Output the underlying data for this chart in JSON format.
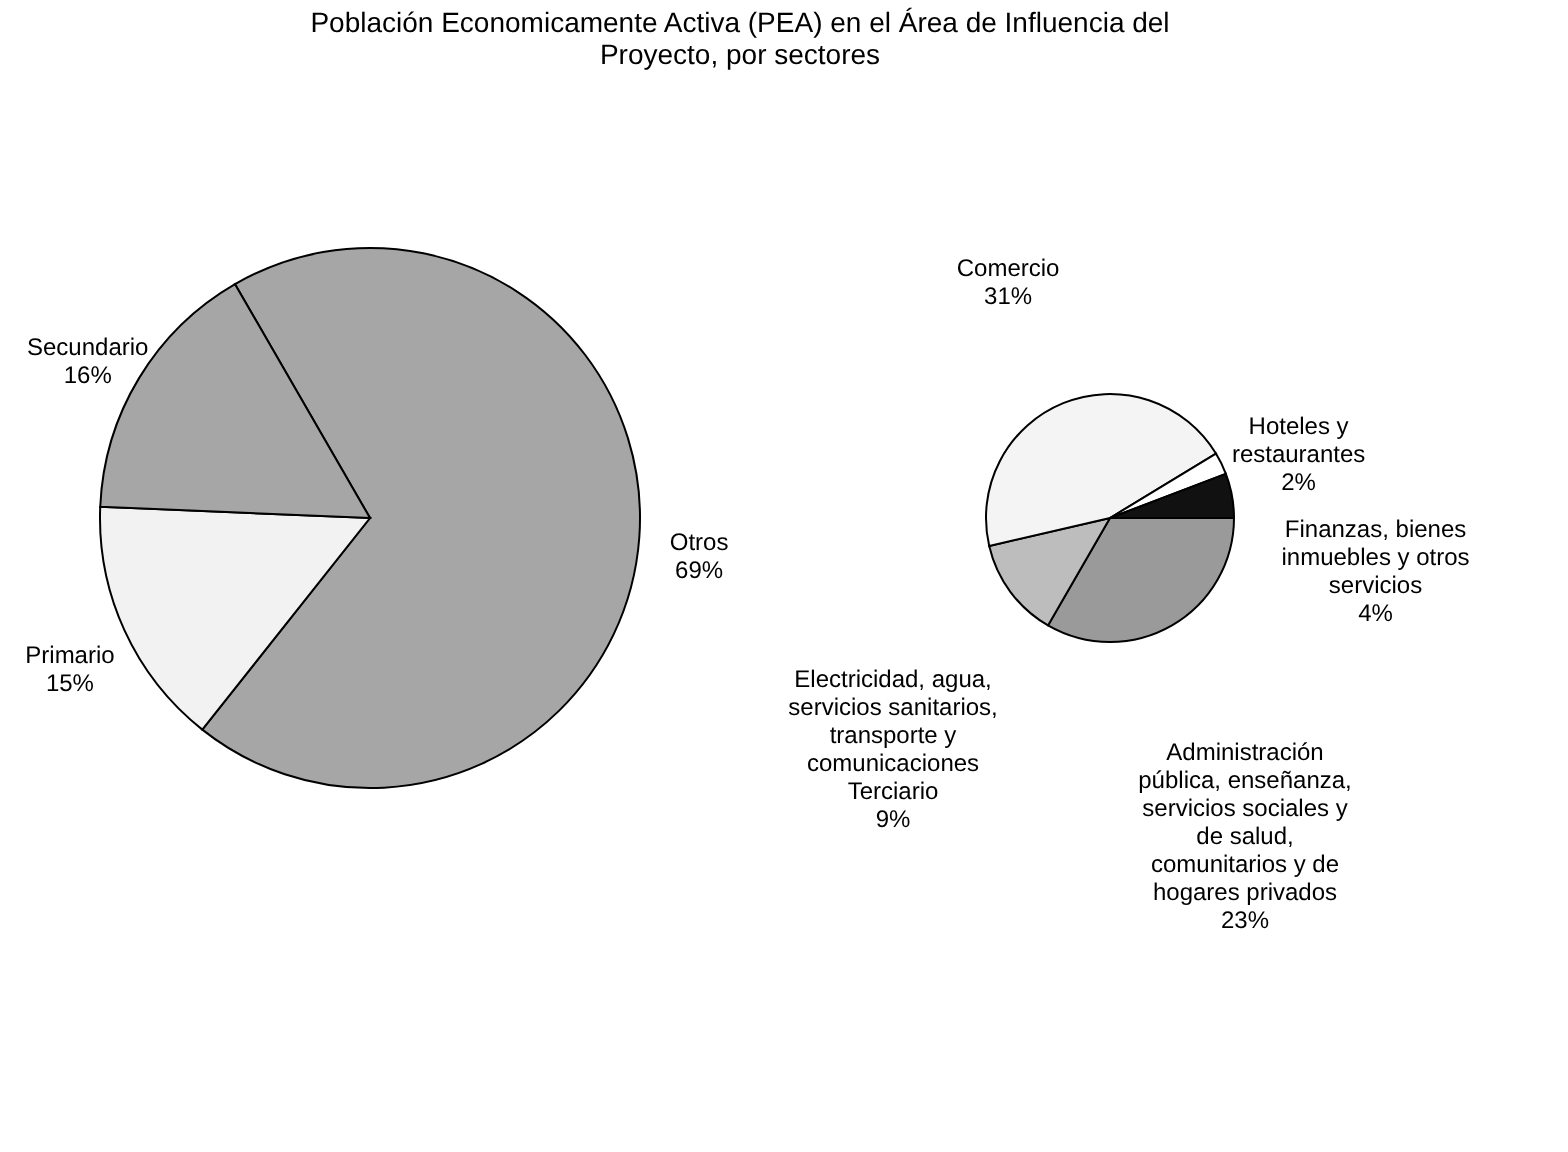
{
  "chart_data": [
    {
      "type": "pie",
      "title": "Población Economicamente Activa (PEA) en el Área de Influencia del\nProyecto, por sectores",
      "categories": [
        "Otros",
        "Primario",
        "Secundario"
      ],
      "values": [
        69,
        15,
        16
      ],
      "value_labels": [
        "69%",
        "15%",
        "16%"
      ],
      "colors": [
        "#a6a6a6",
        "#f2f2f2",
        "#a6a6a6"
      ],
      "legend": false
    },
    {
      "type": "pie",
      "categories": [
        "Administración\npública, enseñanza,\nservicios sociales y\nde salud,\ncomunitarios y de\nhogares privados",
        "Electricidad, agua,\nservicios sanitarios,\ntransporte y\ncomunicaciones\nTerciario",
        "Comercio",
        "Hoteles y\nrestaurantes",
        "Finanzas, bienes\ninmuebles y otros\nservicios"
      ],
      "values": [
        23,
        9,
        31,
        2,
        4
      ],
      "value_labels": [
        "23%",
        "9%",
        "31%",
        "2%",
        "4%"
      ],
      "colors": [
        "#9a9a9a",
        "#bdbdbd",
        "#f4f4f4",
        "#ffffff",
        "#111111"
      ],
      "legend": false
    }
  ]
}
